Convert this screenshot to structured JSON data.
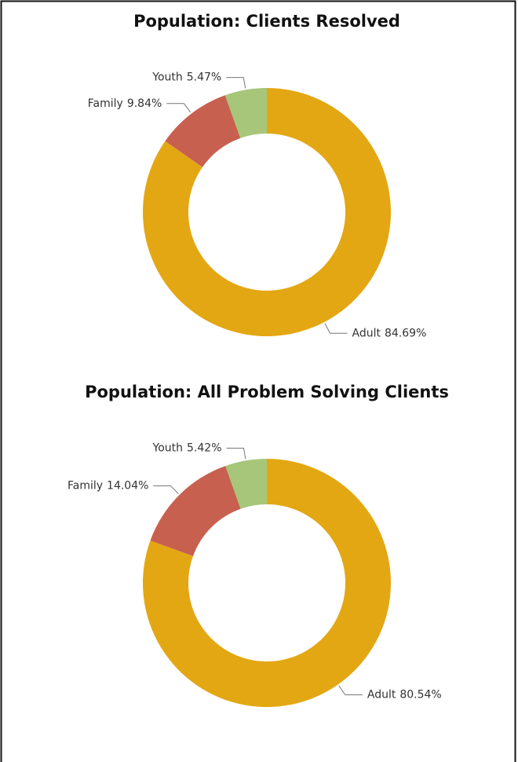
{
  "chart_data": [
    {
      "type": "donut",
      "title": "Population: Clients Resolved",
      "categories": [
        "Adult",
        "Family",
        "Youth"
      ],
      "values": [
        84.69,
        9.84,
        5.47
      ],
      "value_labels": [
        "84.69%",
        "9.84%",
        "5.47%"
      ],
      "colors": [
        "#e3a713",
        "#c8604f",
        "#a7c67a"
      ]
    },
    {
      "type": "donut",
      "title": "Population: All Problem Solving Clients",
      "categories": [
        "Adult",
        "Family",
        "Youth"
      ],
      "values": [
        80.54,
        14.04,
        5.42
      ],
      "value_labels": [
        "80.54%",
        "14.04%",
        "5.42%"
      ],
      "colors": [
        "#e3a713",
        "#c8604f",
        "#a7c67a"
      ]
    }
  ]
}
